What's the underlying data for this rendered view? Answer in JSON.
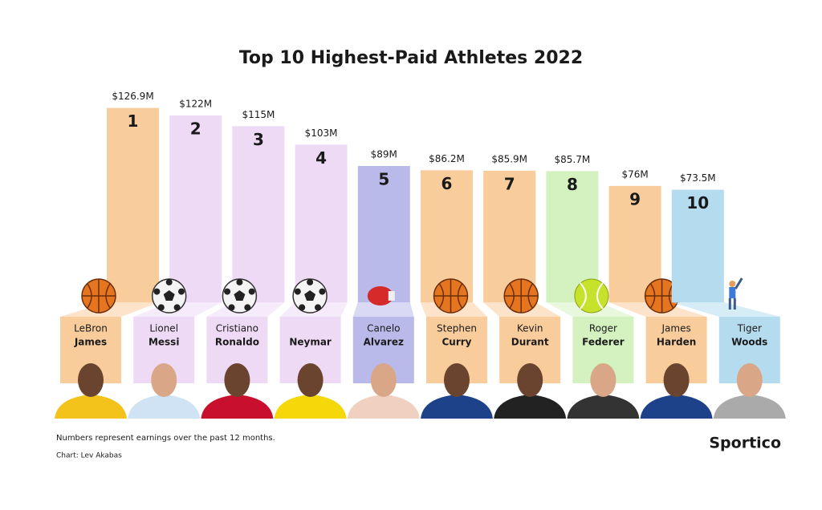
{
  "chart_data": {
    "type": "bar",
    "title": "Top 10 Highest-Paid Athletes 2022",
    "categories": [
      {
        "first": "LeBron",
        "last": "James"
      },
      {
        "first": "Lionel",
        "last": "Messi"
      },
      {
        "first": "Cristiano",
        "last": "Ronaldo"
      },
      {
        "first": null,
        "last": "Neymar"
      },
      {
        "first": "Canelo",
        "last": "Alvarez"
      },
      {
        "first": "Stephen",
        "last": "Curry"
      },
      {
        "first": "Kevin",
        "last": "Durant"
      },
      {
        "first": "Roger",
        "last": "Federer"
      },
      {
        "first": "James",
        "last": "Harden"
      },
      {
        "first": "Tiger",
        "last": "Woods"
      }
    ],
    "values": [
      126.9,
      122,
      115,
      103,
      89,
      86.2,
      85.9,
      85.7,
      76,
      73.5
    ],
    "value_labels": [
      "$126.9M",
      "$122M",
      "$115M",
      "$103M",
      "$89M",
      "$86.2M",
      "$85.9M",
      "$85.7M",
      "$76M",
      "$73.5M"
    ],
    "ranks": [
      1,
      2,
      3,
      4,
      5,
      6,
      7,
      8,
      9,
      10
    ],
    "colors": [
      "#f9cc9c",
      "#efdaf5",
      "#efdaf5",
      "#efdaf5",
      "#b9b9ea",
      "#f9cc9c",
      "#f9cc9c",
      "#d3f2c0",
      "#f9cc9c",
      "#b5dcee"
    ],
    "note": "Numbers represent earnings over the past 12 months.",
    "credit": "Chart: Lev Akabas",
    "brand": "Sportico"
  }
}
